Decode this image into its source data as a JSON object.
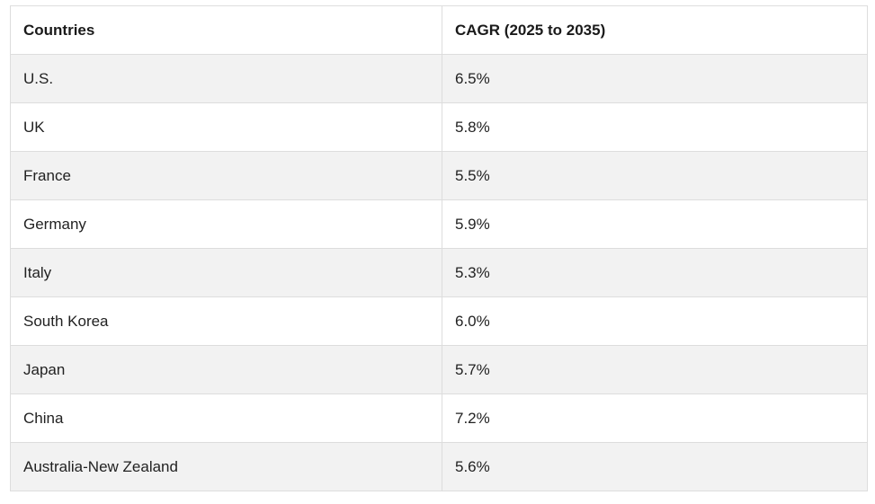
{
  "table": {
    "headers": [
      "Countries",
      "CAGR (2025 to 2035)"
    ],
    "rows": [
      [
        "U.S.",
        "6.5%"
      ],
      [
        "UK",
        "5.8%"
      ],
      [
        "France",
        "5.5%"
      ],
      [
        "Germany",
        "5.9%"
      ],
      [
        "Italy",
        "5.3%"
      ],
      [
        "South Korea",
        "6.0%"
      ],
      [
        "Japan",
        "5.7%"
      ],
      [
        "China",
        "7.2%"
      ],
      [
        "Australia-New Zealand",
        "5.6%"
      ]
    ]
  }
}
